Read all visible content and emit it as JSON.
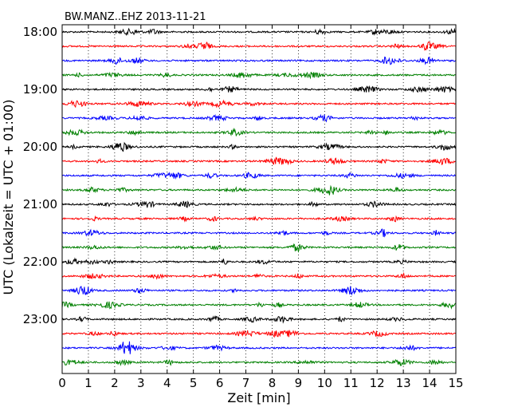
{
  "chart_data": {
    "type": "line",
    "title": "BW.MANZ..EHZ 2013-11-21",
    "xlabel": "Zeit  [min]",
    "ylabel": "UTC (Lokalzeit = UTC + 01:00)",
    "xlim": [
      0,
      15
    ],
    "x_ticks": [
      "0",
      "1",
      "2",
      "3",
      "4",
      "5",
      "6",
      "7",
      "8",
      "9",
      "10",
      "11",
      "12",
      "13",
      "14",
      "15"
    ],
    "y_ticks": [
      "18:00",
      "19:00",
      "20:00",
      "21:00",
      "22:00",
      "23:00"
    ],
    "grid": {
      "x": true,
      "style": "dotted",
      "y": false
    },
    "trace_colors": [
      "#000000",
      "#ff0000",
      "#0000ff",
      "#008000"
    ],
    "rows": [
      {
        "start": "18:00",
        "color": "#000000"
      },
      {
        "start": "18:15",
        "color": "#ff0000"
      },
      {
        "start": "18:30",
        "color": "#0000ff"
      },
      {
        "start": "18:45",
        "color": "#008000"
      },
      {
        "start": "19:00",
        "color": "#000000"
      },
      {
        "start": "19:15",
        "color": "#ff0000"
      },
      {
        "start": "19:30",
        "color": "#0000ff"
      },
      {
        "start": "19:45",
        "color": "#008000"
      },
      {
        "start": "20:00",
        "color": "#000000"
      },
      {
        "start": "20:15",
        "color": "#ff0000"
      },
      {
        "start": "20:30",
        "color": "#0000ff"
      },
      {
        "start": "20:45",
        "color": "#008000"
      },
      {
        "start": "21:00",
        "color": "#000000"
      },
      {
        "start": "21:15",
        "color": "#ff0000"
      },
      {
        "start": "21:30",
        "color": "#0000ff"
      },
      {
        "start": "21:45",
        "color": "#008000"
      },
      {
        "start": "22:00",
        "color": "#000000"
      },
      {
        "start": "22:15",
        "color": "#ff0000"
      },
      {
        "start": "22:30",
        "color": "#0000ff"
      },
      {
        "start": "22:45",
        "color": "#008000"
      },
      {
        "start": "23:00",
        "color": "#000000"
      },
      {
        "start": "23:15",
        "color": "#ff0000"
      },
      {
        "start": "23:30",
        "color": "#0000ff"
      },
      {
        "start": "23:45",
        "color": "#008000"
      }
    ]
  }
}
